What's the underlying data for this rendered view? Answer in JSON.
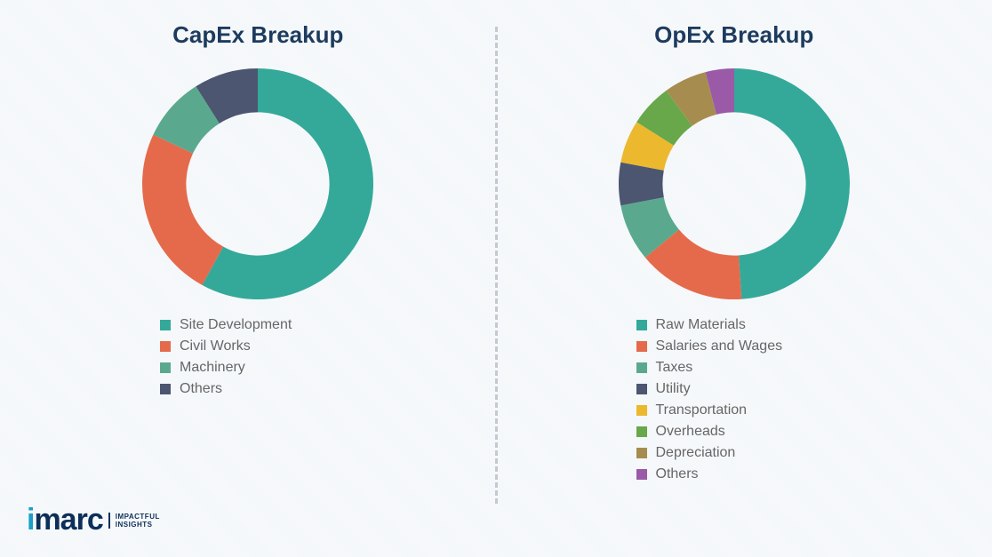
{
  "background_color": "#f5f8fa",
  "divider_color": "#c3c9cf",
  "title_color": "#1d3b5e",
  "legend_text_color": "#666666",
  "donut_inner_ratio": 0.62,
  "charts": [
    {
      "title": "CapEx Breakup",
      "type": "donut",
      "slices": [
        {
          "label": "Site Development",
          "value": 58,
          "color": "#34a99a"
        },
        {
          "label": "Civil Works",
          "value": 24,
          "color": "#e56a4b"
        },
        {
          "label": "Machinery",
          "value": 9,
          "color": "#5aa98e"
        },
        {
          "label": "Others",
          "value": 9,
          "color": "#4c5670"
        }
      ]
    },
    {
      "title": "OpEx Breakup",
      "type": "donut",
      "slices": [
        {
          "label": "Raw Materials",
          "value": 49,
          "color": "#34a99a"
        },
        {
          "label": "Salaries and Wages",
          "value": 15,
          "color": "#e56a4b"
        },
        {
          "label": "Taxes",
          "value": 8,
          "color": "#5aa98e"
        },
        {
          "label": "Utility",
          "value": 6,
          "color": "#4c5670"
        },
        {
          "label": "Transportation",
          "value": 6,
          "color": "#ecb82e"
        },
        {
          "label": "Overheads",
          "value": 6,
          "color": "#68a84a"
        },
        {
          "label": "Depreciation",
          "value": 6,
          "color": "#a68d4f"
        },
        {
          "label": "Others",
          "value": 4,
          "color": "#9a5aa8"
        }
      ]
    }
  ],
  "logo": {
    "brand": "imarc",
    "tagline_line1": "Impactful",
    "tagline_line2": "Insights"
  }
}
